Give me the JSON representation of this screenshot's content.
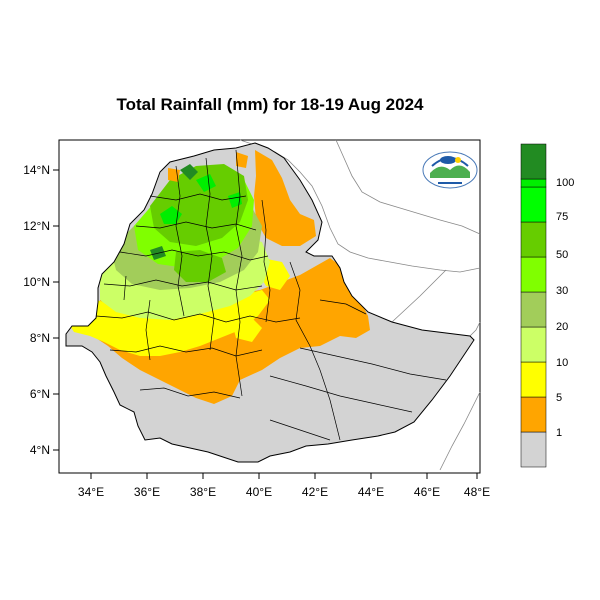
{
  "title": "Total Rainfall (mm) for 18-19 Aug 2024",
  "map": {
    "x_ticks": [
      "34°E",
      "36°E",
      "38°E",
      "40°E",
      "42°E",
      "44°E",
      "46°E",
      "48°E"
    ],
    "y_ticks": [
      "14°N",
      "12°N",
      "10°N",
      "8°N",
      "6°N",
      "4°N"
    ]
  },
  "legend": {
    "labels": [
      "1",
      "5",
      "10",
      "20",
      "30",
      "50",
      "75",
      "100"
    ],
    "colors": [
      "#d3d3d3",
      "#ffa500",
      "#ffff00",
      "#ccff66",
      "#a2cd5a",
      "#80ff00",
      "#66cd00",
      "#00ff00",
      "#00ee00",
      "#228b22"
    ]
  },
  "colors": {
    "no_rain": "#d3d3d3",
    "orange": "#ffa500",
    "yellow": "#ffff00",
    "light_green": "#ccff66",
    "olive_green": "#a2cd5a",
    "lime": "#80ff00",
    "green": "#66cd00",
    "bright_green": "#00ee00",
    "dark_green": "#228b22"
  },
  "logo_icon": "ethiopian-meteorology-institute-logo"
}
